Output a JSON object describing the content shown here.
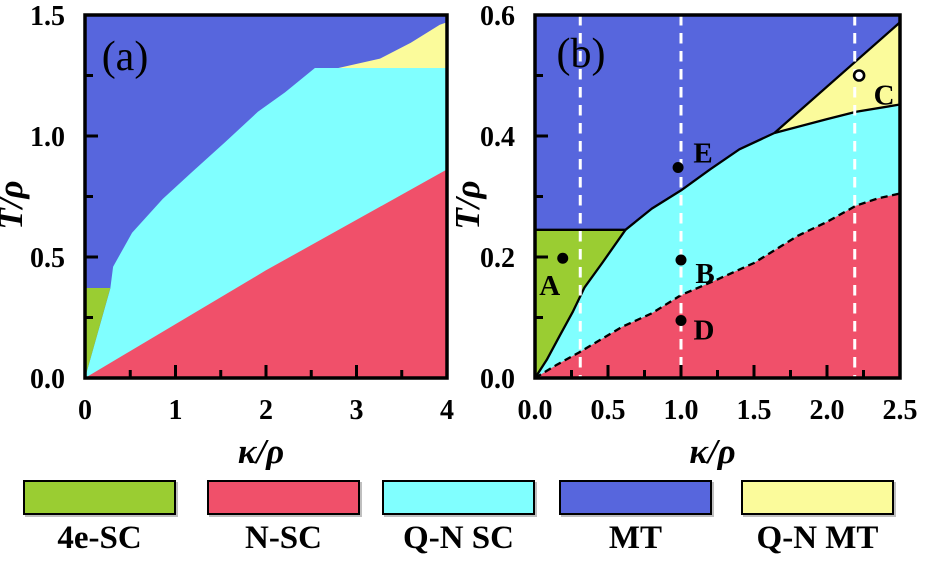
{
  "colors": {
    "green": "#9acd32",
    "red": "#f0506a",
    "cyan": "#80ffff",
    "blue": "#5766dd",
    "yellow": "#fbfb9b",
    "boundary": "#000000",
    "vline": "#ffffff",
    "text": "#000000"
  },
  "figure": {
    "legend": {
      "items": [
        {
          "label": "4e-SC",
          "color": "#9acd32"
        },
        {
          "label": "N-SC",
          "color": "#f0506a"
        },
        {
          "label": "Q-N SC",
          "color": "#80ffff"
        },
        {
          "label": "MT",
          "color": "#5766dd"
        },
        {
          "label": "Q-N MT",
          "color": "#fbfb9b"
        }
      ]
    }
  },
  "chart_data": [
    {
      "type": "area",
      "panel": "a",
      "panel_label": "(a)",
      "xlabel": "κ/ρ",
      "ylabel": "T/ρ",
      "xlim": [
        0,
        4
      ],
      "ylim": [
        0,
        1.5
      ],
      "xticks": {
        "major": [
          0,
          1,
          2,
          3,
          4
        ],
        "labels": [
          "0",
          "1",
          "2",
          "3",
          "4"
        ],
        "minor": [
          0.5,
          1.5,
          2.5,
          3.5
        ]
      },
      "yticks": {
        "major": [
          0,
          0.5,
          1,
          1.5
        ],
        "labels": [
          "0.0",
          "0.5",
          "1.0",
          "1.5"
        ],
        "minor": [
          0.25,
          0.75,
          1.25
        ]
      },
      "background": {
        "phase": "MT",
        "color": "#5766dd"
      },
      "regions": [
        {
          "phase": "Q-N SC",
          "color": "#80ffff",
          "points": [
            [
              0,
              0
            ],
            [
              0.28,
              0.37
            ],
            [
              0.31,
              0.46
            ],
            [
              0.52,
              0.6
            ],
            [
              0.86,
              0.74
            ],
            [
              1.18,
              0.85
            ],
            [
              1.55,
              0.975
            ],
            [
              1.91,
              1.1
            ],
            [
              2.21,
              1.18
            ],
            [
              2.54,
              1.281
            ],
            [
              4,
              1.281
            ],
            [
              4,
              0
            ]
          ]
        },
        {
          "phase": "N-SC",
          "color": "#f0506a",
          "points": [
            [
              0,
              0
            ],
            [
              2,
              0.445
            ],
            [
              4,
              0.862
            ],
            [
              4,
              0
            ]
          ]
        },
        {
          "phase": "4e-SC",
          "color": "#9acd32",
          "points": [
            [
              0,
              0
            ],
            [
              0.28,
              0.372
            ],
            [
              0,
              0.372
            ]
          ]
        },
        {
          "phase": "Q-N MT",
          "color": "#fbfb9b",
          "points": [
            [
              2.8,
              1.281
            ],
            [
              3.26,
              1.32
            ],
            [
              3.6,
              1.385
            ],
            [
              3.92,
              1.46
            ],
            [
              4,
              1.47
            ],
            [
              4,
              1.281
            ]
          ]
        }
      ],
      "boundaries": [],
      "vlines": [],
      "markers": []
    },
    {
      "type": "area",
      "panel": "b",
      "panel_label": "(b)",
      "xlabel": "κ/ρ",
      "ylabel": "T/ρ",
      "xlim": [
        0,
        2.5
      ],
      "ylim": [
        0,
        0.6
      ],
      "xticks": {
        "major": [
          0,
          0.5,
          1,
          1.5,
          2,
          2.5
        ],
        "labels": [
          "0.0",
          "0.5",
          "1.0",
          "1.5",
          "2.0",
          "2.5"
        ],
        "minor": [
          0.25,
          0.75,
          1.25,
          1.75,
          2.25
        ]
      },
      "yticks": {
        "major": [
          0,
          0.2,
          0.4,
          0.6
        ],
        "labels": [
          "0.0",
          "0.2",
          "0.4",
          "0.6"
        ],
        "minor": [
          0.1,
          0.3,
          0.5
        ]
      },
      "background": {
        "phase": "MT",
        "color": "#5766dd"
      },
      "regions": [
        {
          "phase": "Q-N SC",
          "color": "#80ffff",
          "points": [
            [
              0,
              0
            ],
            [
              0.08,
              0.03
            ],
            [
              0.17,
              0.07
            ],
            [
              0.26,
              0.11
            ],
            [
              0.34,
              0.15
            ],
            [
              0.46,
              0.19
            ],
            [
              0.62,
              0.245
            ],
            [
              0.8,
              0.28
            ],
            [
              1.0,
              0.31
            ],
            [
              1.2,
              0.345
            ],
            [
              1.4,
              0.378
            ],
            [
              1.64,
              0.405
            ],
            [
              2.0,
              0.428
            ],
            [
              2.2,
              0.44
            ],
            [
              2.5,
              0.452
            ],
            [
              2.5,
              0
            ]
          ]
        },
        {
          "phase": "4e-SC",
          "color": "#9acd32",
          "points": [
            [
              0,
              0
            ],
            [
              0.08,
              0.03
            ],
            [
              0.17,
              0.07
            ],
            [
              0.26,
              0.11
            ],
            [
              0.34,
              0.15
            ],
            [
              0.46,
              0.19
            ],
            [
              0.62,
              0.245
            ],
            [
              0,
              0.245
            ]
          ]
        },
        {
          "phase": "Q-N MT",
          "color": "#fbfb9b",
          "points": [
            [
              1.64,
              0.405
            ],
            [
              2.5,
              0.588
            ],
            [
              2.5,
              0.452
            ],
            [
              2.2,
              0.44
            ],
            [
              2.0,
              0.428
            ]
          ]
        },
        {
          "phase": "N-SC",
          "color": "#f0506a",
          "points": [
            [
              0,
              0
            ],
            [
              0.15,
              0.022
            ],
            [
              0.3,
              0.042
            ],
            [
              0.6,
              0.085
            ],
            [
              0.8,
              0.107
            ],
            [
              1.0,
              0.137
            ],
            [
              1.25,
              0.163
            ],
            [
              1.5,
              0.19
            ],
            [
              1.8,
              0.235
            ],
            [
              2.0,
              0.258
            ],
            [
              2.2,
              0.285
            ],
            [
              2.35,
              0.297
            ],
            [
              2.5,
              0.305
            ],
            [
              2.5,
              0
            ]
          ]
        }
      ],
      "boundaries": [
        {
          "name": "4eSC-QNSC",
          "style": "solid",
          "points": [
            [
              0,
              0
            ],
            [
              0.08,
              0.03
            ],
            [
              0.17,
              0.07
            ],
            [
              0.26,
              0.11
            ],
            [
              0.34,
              0.15
            ],
            [
              0.46,
              0.19
            ],
            [
              0.62,
              0.245
            ]
          ]
        },
        {
          "name": "4eSC-MT",
          "style": "solid",
          "points": [
            [
              0,
              0.245
            ],
            [
              0.62,
              0.245
            ]
          ]
        },
        {
          "name": "MT-QNSC",
          "style": "solid",
          "points": [
            [
              0.62,
              0.245
            ],
            [
              0.8,
              0.28
            ],
            [
              1.0,
              0.31
            ],
            [
              1.2,
              0.345
            ],
            [
              1.4,
              0.378
            ],
            [
              1.64,
              0.405
            ]
          ]
        },
        {
          "name": "MT-QNMT",
          "style": "solid",
          "points": [
            [
              1.64,
              0.405
            ],
            [
              2.5,
              0.588
            ]
          ]
        },
        {
          "name": "QNMT-QNSC",
          "style": "solid",
          "points": [
            [
              1.64,
              0.405
            ],
            [
              2.0,
              0.428
            ],
            [
              2.2,
              0.44
            ],
            [
              2.5,
              0.452
            ]
          ]
        },
        {
          "name": "QNSC-NSC",
          "style": "dashed",
          "points": [
            [
              0,
              0
            ],
            [
              0.15,
              0.022
            ],
            [
              0.3,
              0.042
            ],
            [
              0.6,
              0.085
            ],
            [
              0.8,
              0.107
            ],
            [
              1.0,
              0.137
            ],
            [
              1.25,
              0.163
            ],
            [
              1.5,
              0.19
            ],
            [
              1.8,
              0.235
            ],
            [
              2.0,
              0.258
            ],
            [
              2.2,
              0.285
            ],
            [
              2.35,
              0.297
            ],
            [
              2.5,
              0.305
            ]
          ]
        }
      ],
      "vlines": [
        0.31,
        1.0,
        2.19
      ],
      "markers": [
        {
          "label": "A",
          "x": 0.19,
          "y": 0.198,
          "style": "filled",
          "label_offset": [
            -13,
            27
          ]
        },
        {
          "label": "B",
          "x": 1.0,
          "y": 0.195,
          "style": "filled",
          "label_offset": [
            24,
            13
          ]
        },
        {
          "label": "C",
          "x": 2.22,
          "y": 0.5,
          "style": "open",
          "label_offset": [
            25,
            19
          ]
        },
        {
          "label": "D",
          "x": 1.0,
          "y": 0.095,
          "style": "filled",
          "label_offset": [
            23,
            9
          ]
        },
        {
          "label": "E",
          "x": 0.98,
          "y": 0.348,
          "style": "filled",
          "label_offset": [
            25,
            -15
          ]
        }
      ]
    }
  ]
}
